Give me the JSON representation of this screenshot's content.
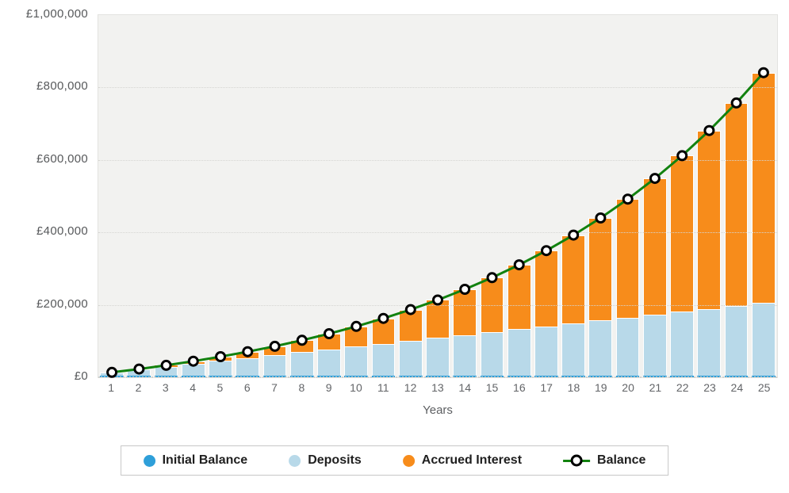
{
  "chart_data": {
    "type": "bar",
    "subtype": "stacked-bars-with-line",
    "title": "",
    "xlabel": "Years",
    "ylabel": "",
    "currency": "£",
    "ylim": [
      0,
      1000000
    ],
    "yticks": [
      0,
      200000,
      400000,
      600000,
      800000,
      1000000
    ],
    "ytick_labels": [
      "£0",
      "£200,000",
      "£400,000",
      "£600,000",
      "£800,000",
      "£1,000,000"
    ],
    "grid": true,
    "legend_position": "bottom",
    "categories": [
      1,
      2,
      3,
      4,
      5,
      6,
      7,
      8,
      9,
      10,
      11,
      12,
      13,
      14,
      15,
      16,
      17,
      18,
      19,
      20,
      21,
      22,
      23,
      24,
      25
    ],
    "series": [
      {
        "name": "Initial Balance",
        "color": "#2E9FD9",
        "values": [
          5000,
          5000,
          5000,
          5000,
          5000,
          5000,
          5000,
          5000,
          5000,
          5000,
          5000,
          5000,
          5000,
          5000,
          5000,
          5000,
          5000,
          5000,
          5000,
          5000,
          5000,
          5000,
          5000,
          5000,
          5000
        ]
      },
      {
        "name": "Deposits",
        "color": "#B8D9E9",
        "values": [
          8000,
          16000,
          24000,
          32000,
          40000,
          48000,
          56000,
          64000,
          72000,
          80000,
          88000,
          96000,
          104000,
          112000,
          120000,
          128000,
          136000,
          144000,
          152000,
          160000,
          168000,
          176000,
          184000,
          192000,
          200000
        ]
      },
      {
        "name": "Accrued Interest",
        "color": "#F78C1B",
        "values": [
          500,
          1850,
          4135,
          7449,
          11893,
          17583,
          24641,
          33205,
          43426,
          55468,
          69515,
          85766,
          104443,
          125787,
          150066,
          177573,
          208630,
          243593,
          282852,
          326837,
          376021,
          430923,
          492116,
          560227,
          635950
        ]
      }
    ],
    "line_series": {
      "name": "Balance",
      "color": "#12820F",
      "marker": "open-circle-black-ring",
      "values": [
        13500,
        22850,
        33135,
        44449,
        56893,
        70583,
        85641,
        102205,
        120426,
        140468,
        162515,
        186766,
        213443,
        242787,
        275066,
        310573,
        349630,
        392593,
        439852,
        491837,
        549021,
        611923,
        681116,
        757227,
        840950
      ]
    }
  },
  "style": {
    "plot_bg": "#f2f2f0",
    "grid_color": "#d5d5d2",
    "axis_text_color": "#636568",
    "bar_border_color": "#ffffff"
  }
}
